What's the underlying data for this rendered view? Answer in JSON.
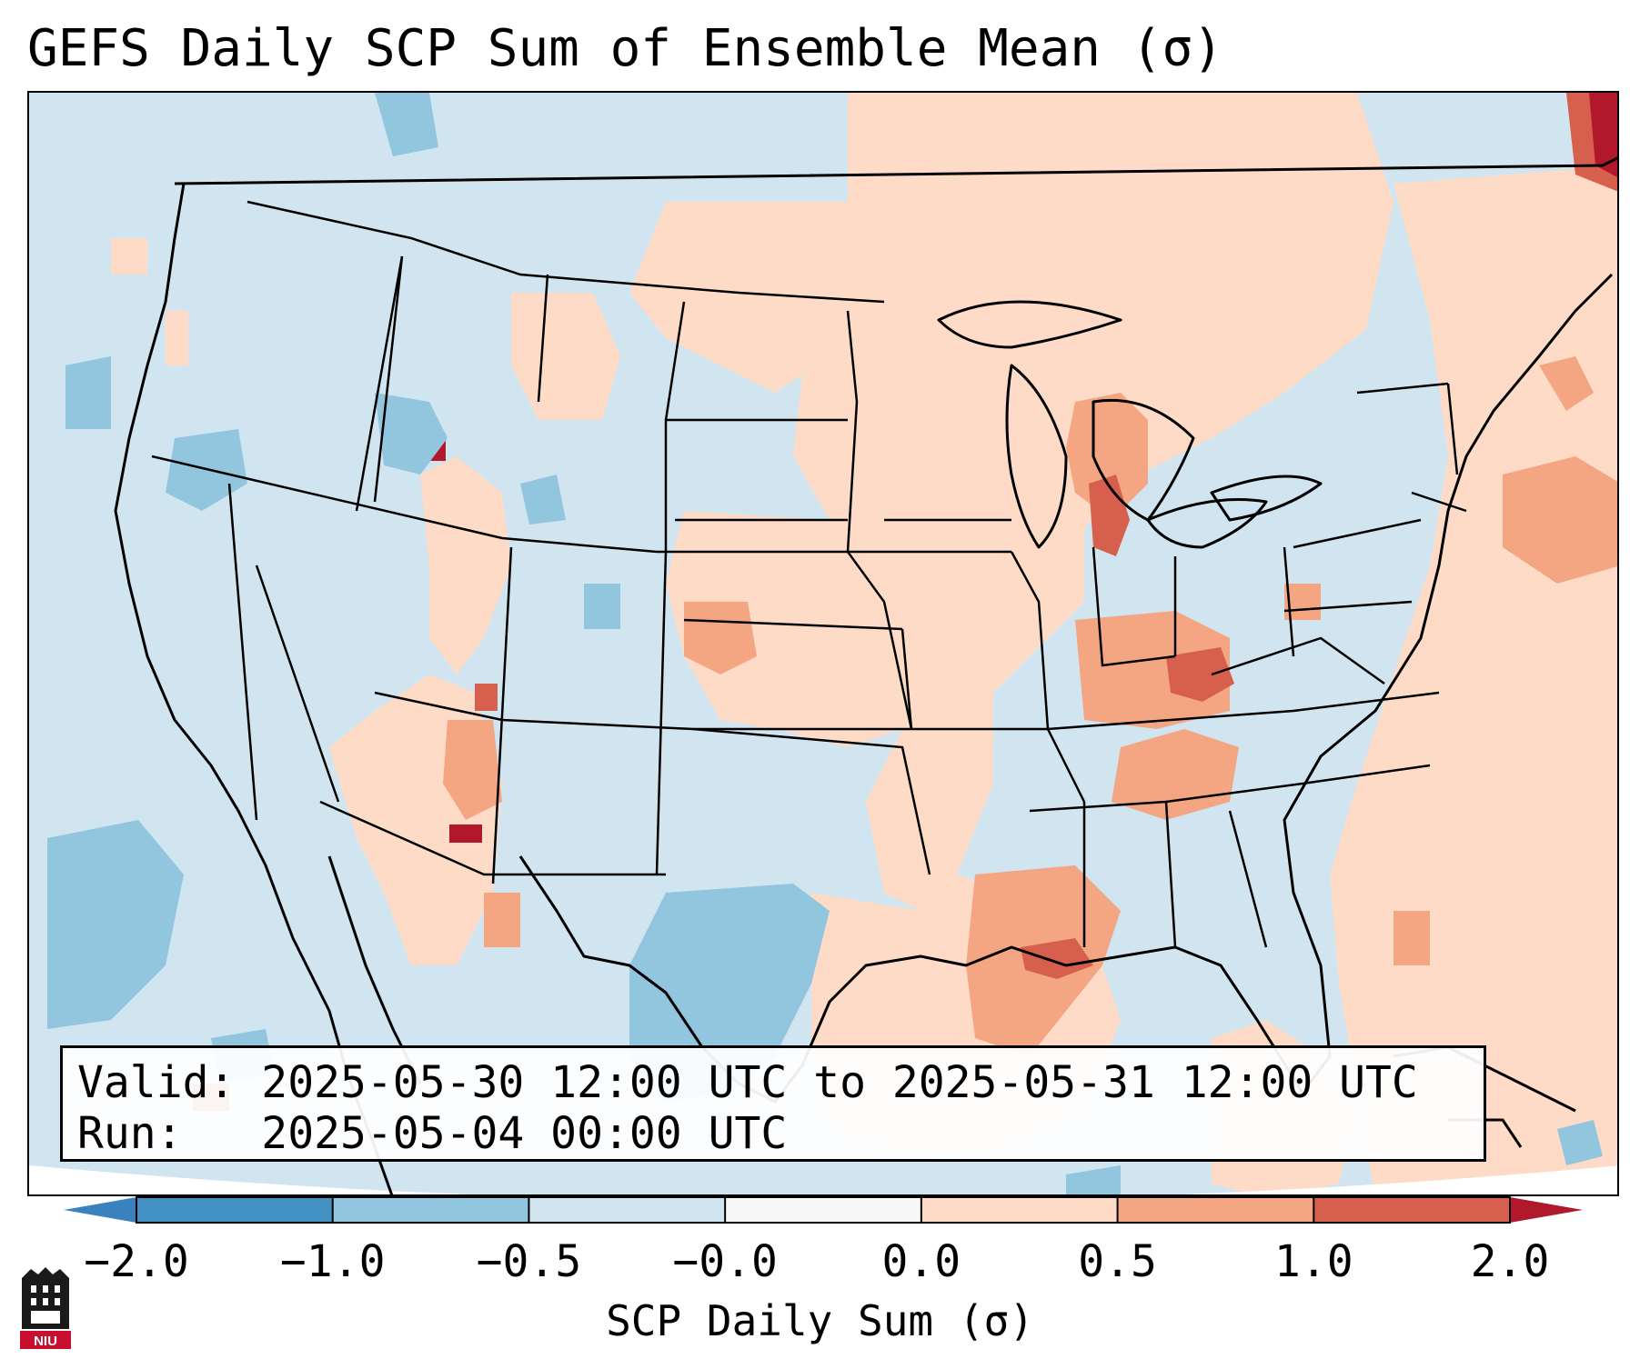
{
  "title": "GEFS Daily SCP Sum of Ensemble Mean (σ)",
  "info": {
    "valid_label": "Valid:",
    "valid_value": "2025-05-30 12:00 UTC to 2025-05-31 12:00 UTC",
    "run_label": "Run:",
    "run_value": "2025-05-04 00:00 UTC"
  },
  "colorbar": {
    "label": "SCP Daily Sum (σ)",
    "ticks": [
      "−2.0",
      "−1.0",
      "−0.5",
      "−0.0",
      "0.0",
      "0.5",
      "1.0",
      "2.0"
    ],
    "colors": {
      "under": "#3a82be",
      "bins": [
        "#4392c3",
        "#92c5de",
        "#d1e5f0",
        "#f7f7f7",
        "#fddbc7",
        "#f4a582",
        "#d6604d"
      ],
      "over": "#b2182b"
    },
    "extend": "both"
  },
  "map": {
    "projection": "Lambert conformal",
    "region": "Contiguous United States",
    "background_value_color": "#d1e5f0"
  },
  "logo": {
    "text": "NIU",
    "colors": {
      "red": "#c8102e",
      "black": "#1a1a1a"
    }
  }
}
